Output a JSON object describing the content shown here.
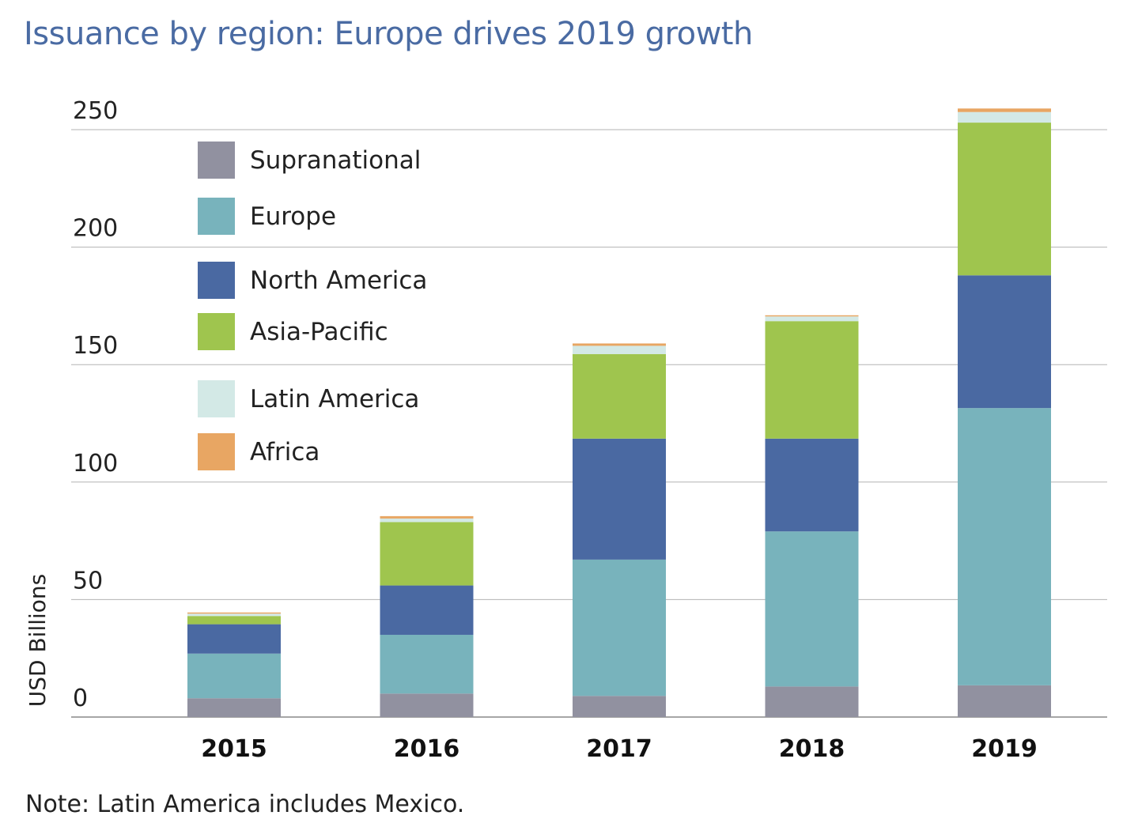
{
  "page": {
    "title": "Issuance by region: Europe drives 2019 growth",
    "note": "Note: Latin America includes Mexico."
  },
  "chart_data": {
    "type": "bar",
    "stacked": true,
    "title": "Issuance by region: Europe drives 2019 growth",
    "xlabel": "",
    "ylabel": "USD Billions",
    "ylim": [
      0,
      250
    ],
    "yticks": [
      0,
      50,
      100,
      150,
      200,
      250
    ],
    "grid": true,
    "legend_position": "top-left",
    "categories": [
      "2015",
      "2016",
      "2017",
      "2018",
      "2019"
    ],
    "series": [
      {
        "name": "Supranational",
        "color": "#9191a0",
        "values": [
          8,
          10,
          9,
          13,
          13.5
        ]
      },
      {
        "name": "Europe",
        "color": "#78b3bc",
        "values": [
          19,
          25,
          58,
          66,
          118
        ]
      },
      {
        "name": "North America",
        "color": "#4a69a2",
        "values": [
          12.5,
          21,
          51.5,
          39.5,
          56.5
        ]
      },
      {
        "name": "Asia-Pacific",
        "color": "#9fc54e",
        "values": [
          3.5,
          27,
          36,
          50,
          65
        ]
      },
      {
        "name": "Latin America",
        "color": "#d3e9e6",
        "values": [
          1,
          1.5,
          3.5,
          2,
          4.5
        ]
      },
      {
        "name": "Africa",
        "color": "#e8a663",
        "values": [
          0.5,
          1,
          1,
          0.5,
          1.5
        ]
      }
    ]
  }
}
